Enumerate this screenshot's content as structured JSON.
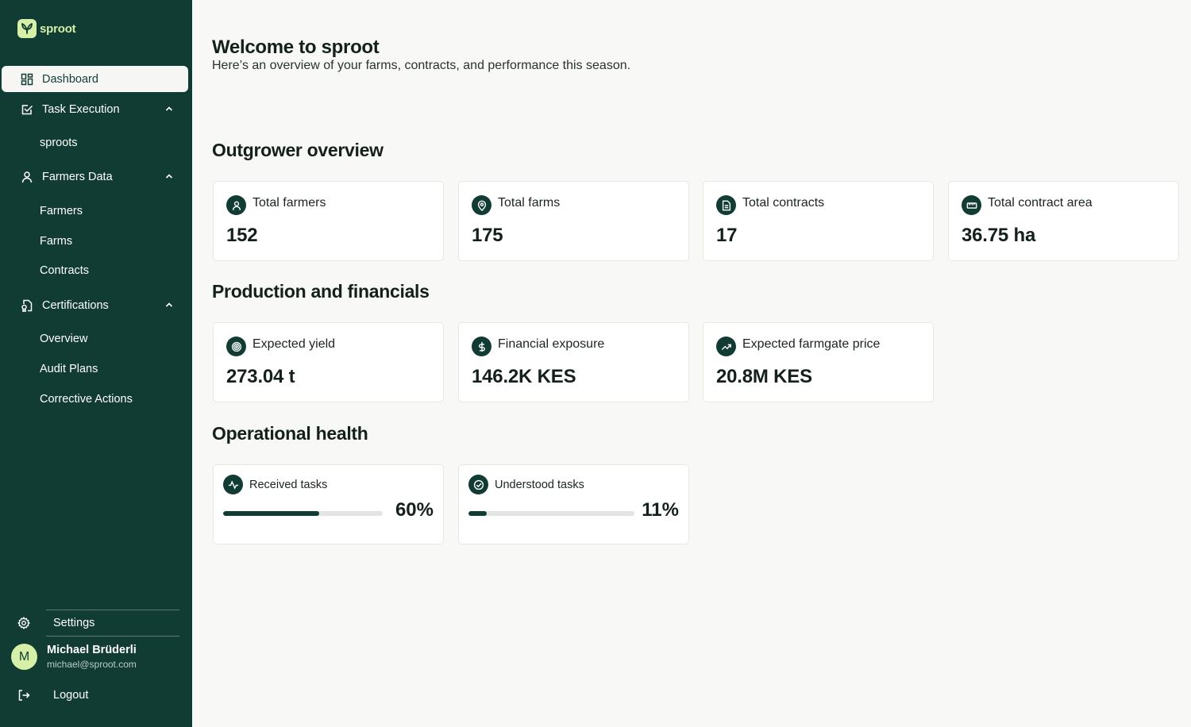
{
  "app": {
    "logo_text": "sproot"
  },
  "sidebar": {
    "items": [
      {
        "label": "Dashboard",
        "icon": "dashboard-grid-icon",
        "active": true
      },
      {
        "label": "Task Execution",
        "icon": "checkbox-icon",
        "expanded": true,
        "children": [
          "sproots"
        ]
      },
      {
        "label": "Farmers Data",
        "icon": "user-icon",
        "expanded": true,
        "children": [
          "Farmers",
          "Farms",
          "Contracts"
        ]
      },
      {
        "label": "Certifications",
        "icon": "certificate-icon",
        "expanded": true,
        "children": [
          "Overview",
          "Audit Plans",
          "Corrective Actions"
        ]
      }
    ],
    "settings_label": "Settings",
    "user": {
      "initial": "M",
      "name": "Michael Brüderli",
      "email": "michael@sproot.com"
    },
    "logout_label": "Logout"
  },
  "main": {
    "title": "Welcome to sproot",
    "subtitle": "Here’s an overview of your farms, contracts, and performance this season.",
    "sections": {
      "outgrower": {
        "title": "Outgrower overview",
        "cards": [
          {
            "label": "Total farmers",
            "value": "152",
            "icon": "user-icon"
          },
          {
            "label": "Total farms",
            "value": "175",
            "icon": "map-pin-icon"
          },
          {
            "label": "Total contracts",
            "value": "17",
            "icon": "document-icon"
          },
          {
            "label": "Total contract area",
            "value": "36.75 ha",
            "icon": "ruler-icon"
          }
        ]
      },
      "production": {
        "title": "Production and financials",
        "cards": [
          {
            "label": "Expected yield",
            "value": "273.04 t",
            "icon": "target-icon"
          },
          {
            "label": "Financial exposure",
            "value": "146.2K KES",
            "icon": "dollar-icon"
          },
          {
            "label": "Expected farmgate price",
            "value": "20.8M KES",
            "icon": "trending-up-icon"
          }
        ]
      },
      "health": {
        "title": "Operational health",
        "cards": [
          {
            "label": "Received tasks",
            "value": "60%",
            "progress": 0.6,
            "icon": "activity-icon"
          },
          {
            "label": "Understood tasks",
            "value": "11%",
            "progress": 0.11,
            "icon": "check-circle-icon"
          }
        ]
      }
    }
  },
  "colors": {
    "sidebar_bg": "#113c34",
    "accent": "#d6f0a8",
    "page_bg": "#f8f8f6"
  }
}
